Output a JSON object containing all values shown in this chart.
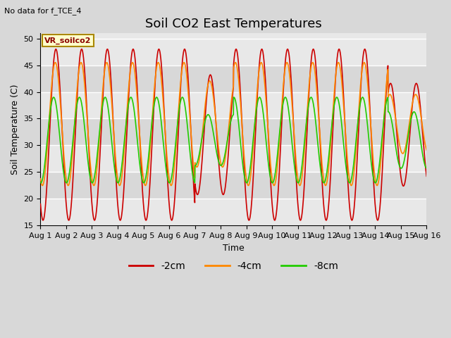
{
  "title": "Soil CO2 East Temperatures",
  "top_left_text": "No data for f_TCE_4",
  "ylabel": "Soil Temperature (C)",
  "xlabel": "Time",
  "ylim": [
    15,
    51
  ],
  "yticks": [
    15,
    20,
    25,
    30,
    35,
    40,
    45,
    50
  ],
  "figure_bg_color": "#d8d8d8",
  "axes_bg_color": "#e8e8e8",
  "title_fontsize": 13,
  "label_fontsize": 9,
  "tick_fontsize": 8,
  "legend_label": "VR_soilco2",
  "line_colors": {
    "-2cm": "#cc0000",
    "-4cm": "#ff8800",
    "-8cm": "#22cc00"
  },
  "legend_entries": [
    "-2cm",
    "-4cm",
    "-8cm"
  ],
  "x_tick_labels": [
    "Aug 1",
    "Aug 2",
    "Aug 3",
    "Aug 4",
    "Aug 5",
    "Aug 6",
    "Aug 7",
    "Aug 8",
    "Aug 9",
    "Aug 10",
    "Aug 11",
    "Aug 12",
    "Aug 13",
    "Aug 14",
    "Aug 15",
    "Aug 16"
  ],
  "n_days": 15,
  "grid_color": "#ffffff",
  "grid_linewidth": 1.0,
  "band_colors": [
    "#e8e8e8",
    "#d8d8d8"
  ]
}
